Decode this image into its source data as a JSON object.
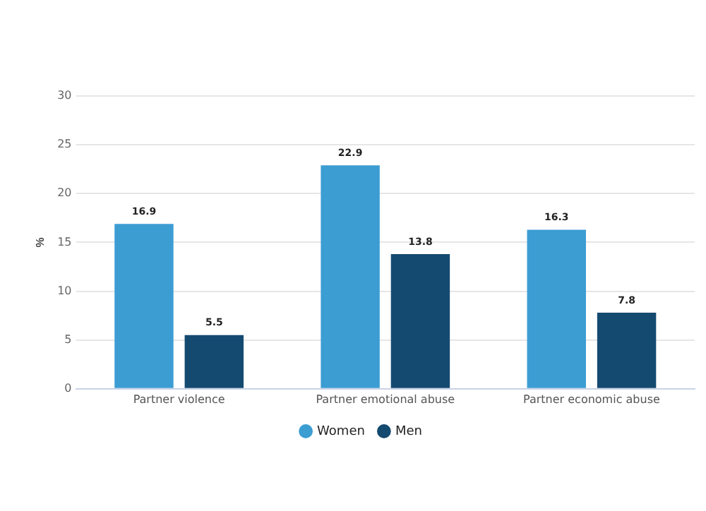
{
  "chart_data": {
    "type": "bar",
    "ylabel": "%",
    "categories": [
      "Partner violence",
      "Partner emotional abuse",
      "Partner economic abuse"
    ],
    "series": [
      {
        "name": "Women",
        "color": "#3c9dd3",
        "values": [
          16.9,
          22.9,
          16.3
        ]
      },
      {
        "name": "Men",
        "color": "#154a70",
        "values": [
          5.5,
          13.8,
          7.8
        ]
      }
    ],
    "ylim": [
      0,
      30
    ],
    "yticks": [
      0,
      5,
      10,
      15,
      20,
      25,
      30
    ],
    "grid": "y",
    "legend": "bottom",
    "data_labels": true
  }
}
